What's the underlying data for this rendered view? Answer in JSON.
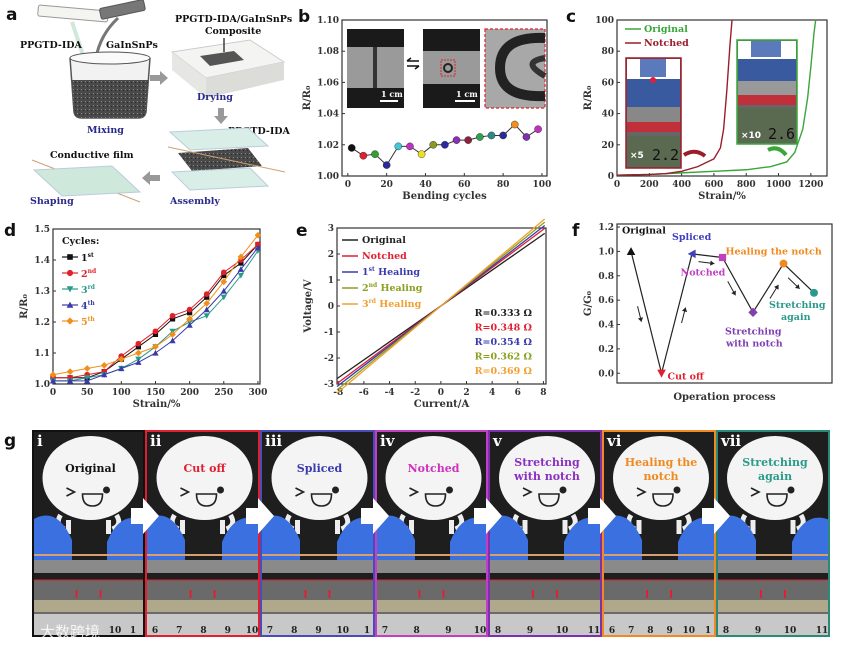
{
  "panel_labels": [
    "a",
    "b",
    "c",
    "d",
    "e",
    "f",
    "g"
  ],
  "panel_a": {
    "pptgd": "PPGTD-IDA",
    "galn": "GaInSnPs",
    "composite_line1": "PPGTD-IDA/GaInSnPs",
    "composite_line2": "Composite",
    "mixing": "Mixing",
    "drying": "Drying",
    "pptgd_layer": "PPGTD-IDA",
    "assembly": "Assembly",
    "conductive_film": "Conductive film",
    "shaping": "Shaping",
    "step_color": "#2a2a8a"
  },
  "panel_b_insets": {
    "scale1": "1 cm",
    "scale2": "1 cm"
  },
  "panel_c_insets": {
    "left_mult": "×5",
    "left_reading": "2.2",
    "right_mult": "×10",
    "right_reading": "2.6"
  },
  "chart_data": [
    {
      "id": "b",
      "type": "scatter",
      "xlabel": "Bending cycles",
      "ylabel": "R/R₀",
      "xlim": [
        -3,
        102.6
      ],
      "ylim": [
        1.0,
        1.1
      ],
      "xticks": [
        "0",
        "20",
        "40",
        "60",
        "80",
        "100"
      ],
      "xtick_values": [
        0,
        20,
        40,
        60,
        80,
        100
      ],
      "yticks": [
        "1.00",
        "1.02",
        "1.04",
        "1.06",
        "1.08",
        "1.10"
      ],
      "ytick_values": [
        1.0,
        1.02,
        1.04,
        1.06,
        1.08,
        1.1
      ],
      "series": [
        {
          "name": "R/R0",
          "x": [
            2,
            8,
            14,
            20,
            26,
            32,
            38,
            44,
            50,
            56,
            62,
            68,
            74,
            80,
            86,
            92,
            98
          ],
          "y": [
            1.018,
            1.013,
            1.014,
            1.007,
            1.019,
            1.019,
            1.014,
            1.02,
            1.02,
            1.023,
            1.023,
            1.025,
            1.026,
            1.026,
            1.033,
            1.025,
            1.03
          ],
          "colors": [
            "#111111",
            "#e02030",
            "#30a030",
            "#2a2a9a",
            "#40c8d8",
            "#c030c0",
            "#f0e020",
            "#8a9a20",
            "#2a2aa0",
            "#8a30b0",
            "#902040",
            "#30a050",
            "#2a8a8a",
            "#2a2a9a",
            "#f09020",
            "#8030b0",
            "#c030c0"
          ]
        }
      ]
    },
    {
      "id": "c",
      "type": "line",
      "xlabel": "Strain/%",
      "ylabel": "R/R₀",
      "xlim": [
        0,
        1300
      ],
      "ylim": [
        0,
        100
      ],
      "xticks": [
        "0",
        "200",
        "400",
        "600",
        "800",
        "1000",
        "1200"
      ],
      "xtick_values": [
        0,
        200,
        400,
        600,
        800,
        1000,
        1200
      ],
      "yticks": [
        "0",
        "20",
        "40",
        "60",
        "80",
        "100"
      ],
      "ytick_values": [
        0,
        20,
        40,
        60,
        80,
        100
      ],
      "legend": "top-left",
      "series": [
        {
          "name": "Original",
          "color": "#3aa63a",
          "x": [
            0,
            200,
            400,
            600,
            800,
            950,
            1050,
            1100,
            1150,
            1180,
            1200,
            1220,
            1230
          ],
          "y": [
            0.5,
            1,
            2,
            3,
            4,
            6,
            9,
            15,
            30,
            50,
            70,
            92,
            100
          ]
        },
        {
          "name": "Notched",
          "color": "#9b1c2a",
          "x": [
            0,
            200,
            300,
            400,
            500,
            600,
            640,
            660,
            680,
            700,
            712
          ],
          "y": [
            0.5,
            1,
            1.5,
            3,
            6,
            11,
            18,
            30,
            55,
            85,
            100
          ]
        }
      ]
    },
    {
      "id": "d",
      "type": "line",
      "xlabel": "Strain/%",
      "ylabel": "R/R₀",
      "xlim": [
        0,
        303
      ],
      "ylim": [
        1.0,
        1.5
      ],
      "xticks": [
        "0",
        "50",
        "100",
        "150",
        "200",
        "250",
        "300"
      ],
      "xtick_values": [
        0,
        50,
        100,
        150,
        200,
        250,
        300
      ],
      "yticks": [
        "1.0",
        "1.1",
        "1.2",
        "1.3",
        "1.4",
        "1.5"
      ],
      "ytick_values": [
        1.0,
        1.1,
        1.2,
        1.3,
        1.4,
        1.5
      ],
      "legend_title": "Cycles:",
      "x": [
        0,
        25,
        50,
        75,
        100,
        125,
        150,
        175,
        200,
        225,
        250,
        275,
        300
      ],
      "series": [
        {
          "name": "1st",
          "num": "1",
          "sup": "st",
          "color": "#111111",
          "marker": "square",
          "y": [
            1.02,
            1.02,
            1.02,
            1.04,
            1.08,
            1.12,
            1.16,
            1.21,
            1.23,
            1.28,
            1.35,
            1.39,
            1.45
          ]
        },
        {
          "name": "2nd",
          "num": "2",
          "sup": "nd",
          "color": "#e0202a",
          "marker": "circle",
          "y": [
            1.02,
            1.02,
            1.03,
            1.04,
            1.09,
            1.13,
            1.17,
            1.22,
            1.24,
            1.29,
            1.36,
            1.4,
            1.45
          ]
        },
        {
          "name": "3rd",
          "num": "3",
          "sup": "rd",
          "color": "#2a9a8a",
          "marker": "triangle-down",
          "y": [
            1.01,
            1.01,
            1.02,
            1.03,
            1.05,
            1.08,
            1.12,
            1.17,
            1.2,
            1.22,
            1.28,
            1.35,
            1.43
          ]
        },
        {
          "name": "4th",
          "num": "4",
          "sup": "th",
          "color": "#3a3aa8",
          "marker": "triangle-up",
          "y": [
            1.01,
            1.01,
            1.01,
            1.03,
            1.05,
            1.07,
            1.1,
            1.14,
            1.19,
            1.24,
            1.3,
            1.37,
            1.44
          ]
        },
        {
          "name": "5th",
          "num": "5",
          "sup": "th",
          "color": "#f0901a",
          "marker": "diamond",
          "y": [
            1.03,
            1.04,
            1.05,
            1.06,
            1.08,
            1.1,
            1.12,
            1.16,
            1.21,
            1.26,
            1.33,
            1.41,
            1.48
          ]
        }
      ]
    },
    {
      "id": "e",
      "type": "line",
      "xlabel": "Current/A",
      "ylabel": "Voltage/V",
      "xlim": [
        -8.1,
        8.2
      ],
      "ylim": [
        -3,
        3
      ],
      "xticks": [
        "-8",
        "-6",
        "-4",
        "-2",
        "0",
        "2",
        "4",
        "6",
        "8"
      ],
      "xtick_values": [
        -8,
        -6,
        -4,
        -2,
        0,
        2,
        4,
        6,
        8
      ],
      "yticks": [
        "-3",
        "-2",
        "-1",
        "0",
        "1",
        "2",
        "3"
      ],
      "ytick_values": [
        -3,
        -2,
        -1,
        0,
        1,
        2,
        3
      ],
      "series": [
        {
          "name": "Original",
          "num": "Original",
          "sup": "",
          "rest": "",
          "color": "#222222",
          "resistance": 0.333,
          "r_label": "R=0.333 Ω"
        },
        {
          "name": "Notched",
          "num": "Notched",
          "sup": "",
          "rest": "",
          "color": "#e02030",
          "resistance": 0.348,
          "r_label": "R=0.348 Ω"
        },
        {
          "name": "1st Healing",
          "num": "1",
          "sup": "st",
          "rest": " Healing",
          "color": "#3a3ab0",
          "resistance": 0.354,
          "r_label": "R=0.354 Ω"
        },
        {
          "name": "2nd Healing",
          "num": "2",
          "sup": "nd",
          "rest": " Healing",
          "color": "#8aa020",
          "resistance": 0.362,
          "r_label": "R=0.362 Ω"
        },
        {
          "name": "3rd Healing",
          "num": "3",
          "sup": "rd",
          "rest": " Healing",
          "color": "#f0a030",
          "resistance": 0.369,
          "r_label": "R=0.369 Ω"
        }
      ]
    },
    {
      "id": "f",
      "type": "line",
      "xlabel": "Operation process",
      "ylabel": "G/G₀",
      "xlim": [
        0.54,
        7.59
      ],
      "ylim": [
        -0.08,
        1.225
      ],
      "yticks": [
        "0.0",
        "0.2",
        "0.4",
        "0.6",
        "0.8",
        "1.0",
        "1.2"
      ],
      "ytick_values": [
        0,
        0.2,
        0.4,
        0.6,
        0.8,
        1.0,
        1.2
      ],
      "points": [
        {
          "label": "Original",
          "x": 1,
          "y": 1.0,
          "color": "#111111",
          "marker": "triangle-up"
        },
        {
          "label": "Cut off",
          "x": 2,
          "y": 0.0,
          "color": "#e02030",
          "marker": "triangle-down"
        },
        {
          "label": "Spliced",
          "x": 3,
          "y": 0.98,
          "color": "#4040c0",
          "marker": "triangle-left"
        },
        {
          "label": "Notched",
          "x": 4,
          "y": 0.95,
          "color": "#c040c0",
          "marker": "square"
        },
        {
          "label": "Stretching with notch",
          "label1": "Stretching",
          "label2": "with notch",
          "x": 5,
          "y": 0.5,
          "color": "#8040b0",
          "marker": "diamond"
        },
        {
          "label": "Healing the notch",
          "x": 6,
          "y": 0.9,
          "color": "#f08a20",
          "marker": "circle"
        },
        {
          "label": "Stretching again",
          "label1": "Stretching",
          "label2": "again",
          "x": 7,
          "y": 0.66,
          "color": "#2a9a8a",
          "marker": "circle"
        }
      ]
    }
  ],
  "panel_g": {
    "frames": [
      {
        "roman": "i",
        "line1": "Original",
        "line2": "",
        "color": "#111111",
        "border": "#111111",
        "ruler": [
          "10",
          "1"
        ]
      },
      {
        "roman": "ii",
        "line1": "Cut  off",
        "line2": "",
        "color": "#e02030",
        "border": "#e02030",
        "ruler": [
          "6",
          "7",
          "8",
          "9",
          "10"
        ]
      },
      {
        "roman": "iii",
        "line1": "Spliced",
        "line2": "",
        "color": "#3a3ab0",
        "border": "#4a4ab8",
        "ruler": [
          "7",
          "8",
          "9",
          "10",
          "1"
        ]
      },
      {
        "roman": "iv",
        "line1": "Notched",
        "line2": "",
        "color": "#d030c0",
        "border": "#c040c0",
        "ruler": [
          "7",
          "8",
          "9",
          "10"
        ]
      },
      {
        "roman": "v",
        "line1": "Stretching",
        "line2": "with notch",
        "color": "#8a30c0",
        "border": "#7a30b0",
        "ruler": [
          "8",
          "9",
          "10",
          "11"
        ]
      },
      {
        "roman": "vi",
        "line1": "Healing the",
        "line2": "notch",
        "color": "#f08a20",
        "border": "#f08a20",
        "ruler": [
          "6",
          "7",
          "8",
          "9",
          "10",
          "1"
        ]
      },
      {
        "roman": "vii",
        "line1": "Stretching",
        "line2": "again",
        "color": "#2a9a8a",
        "border": "#2a8a7a",
        "ruler": [
          "8",
          "9",
          "10",
          "11"
        ]
      }
    ],
    "watermark": "大数跨境"
  }
}
